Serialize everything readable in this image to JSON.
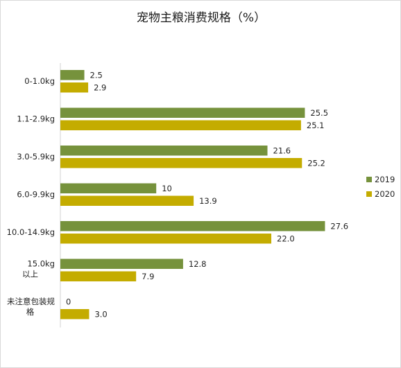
{
  "chart_data": {
    "type": "bar",
    "orientation": "horizontal",
    "title": "宠物主粮消费规格（%）",
    "categories": [
      "0-1.0kg",
      "1.1-2.9kg",
      "3.0-5.9kg",
      "6.0-9.9kg",
      "10.0-14.9kg",
      "15.0kg以上",
      "未注意包装规格"
    ],
    "series": [
      {
        "name": "2019",
        "values": [
          2.5,
          25.5,
          21.6,
          10,
          27.6,
          12.8,
          0
        ],
        "labels": [
          "2.5",
          "25.5",
          "21.6",
          "10",
          "27.6",
          "12.8",
          "0"
        ],
        "color": "#76923c"
      },
      {
        "name": "2020",
        "values": [
          2.9,
          25.1,
          25.2,
          13.9,
          22.0,
          7.9,
          3.0
        ],
        "labels": [
          "2.9",
          "25.1",
          "25.2",
          "13.9",
          "22.0",
          "7.9",
          "3.0"
        ],
        "color": "#c4ac00"
      }
    ],
    "xlim": [
      0,
      30
    ],
    "grid": false,
    "legend_position": "right",
    "data_labels": true
  }
}
